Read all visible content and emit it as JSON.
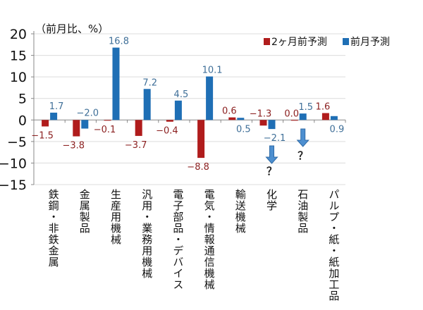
{
  "chart_data": {
    "type": "bar",
    "unit_label": "（前月比、%）",
    "categories": [
      "鉄鋼・非鉄金属",
      "金属製品",
      "生産用機械",
      "汎用・業務用機械",
      "電子部品・デバイス",
      "電気・情報通信機械",
      "輸送機械",
      "化学",
      "石油製品",
      "パルプ・紙・紙加工品"
    ],
    "series": [
      {
        "name": "2ヶ月前予測",
        "color": "#b01c1c",
        "label_color": "#8b1f1f",
        "values": [
          -1.5,
          -3.8,
          -0.1,
          -3.7,
          -0.4,
          -8.8,
          0.6,
          -1.3,
          0.0,
          1.6
        ],
        "labels": [
          "−1.5",
          "−3.8",
          "−0.1",
          "−3.7",
          "−0.4",
          "−8.8",
          "0.6",
          "−1.3",
          "0.0",
          "1.6"
        ]
      },
      {
        "name": "前月予測",
        "color": "#1f6fb5",
        "label_color": "#3f6f98",
        "values": [
          1.7,
          -2.0,
          16.8,
          7.2,
          4.5,
          10.1,
          0.5,
          -2.1,
          1.5,
          0.9
        ],
        "labels": [
          "1.7",
          "−2.0",
          "16.8",
          "7.2",
          "4.5",
          "10.1",
          "0.5",
          "−2.1",
          "1.5",
          "0.9"
        ]
      }
    ],
    "ylim": [
      -15,
      20
    ],
    "yticks": [
      20,
      15,
      10,
      5,
      0,
      -5,
      -10,
      -15
    ],
    "ytick_labels": [
      "20",
      "15",
      "10",
      "5",
      "0",
      "−5",
      "−10",
      "−15"
    ],
    "grid": true,
    "legend": "top-right",
    "annotations": [
      {
        "category": "化学",
        "icon": "down-arrow-icon",
        "text": "？"
      },
      {
        "category": "石油製品",
        "icon": "down-arrow-icon",
        "text": "？"
      }
    ]
  }
}
